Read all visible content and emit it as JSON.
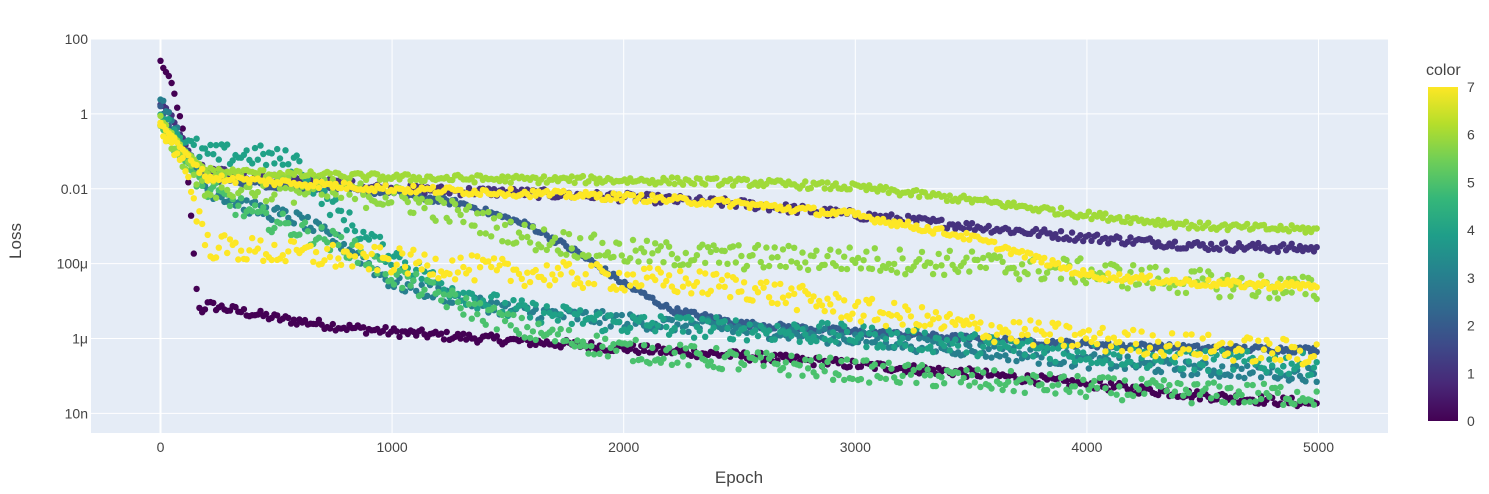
{
  "chart_data": {
    "type": "scatter",
    "xlabel": "Epoch",
    "ylabel": "Loss",
    "y_scale": "log",
    "xlim": [
      -300,
      5300
    ],
    "ylim": [
      3e-09,
      100
    ],
    "x_ticks": [
      {
        "value": 0,
        "label": "0"
      },
      {
        "value": 1000,
        "label": "1000"
      },
      {
        "value": 2000,
        "label": "2000"
      },
      {
        "value": 3000,
        "label": "3000"
      },
      {
        "value": 4000,
        "label": "4000"
      },
      {
        "value": 5000,
        "label": "5000"
      }
    ],
    "y_ticks": [
      {
        "value": 100,
        "label": "100"
      },
      {
        "value": 1,
        "label": "1"
      },
      {
        "value": 0.01,
        "label": "0.01"
      },
      {
        "value": 0.0001,
        "label": "100μ"
      },
      {
        "value": 1e-06,
        "label": "1μ"
      },
      {
        "value": 1e-08,
        "label": "10n"
      }
    ],
    "grid": true,
    "plot_background": "#e5ecf6",
    "colorbar": {
      "title": "color",
      "range": [
        0,
        7
      ],
      "ticks": [
        "0",
        "1",
        "2",
        "3",
        "4",
        "5",
        "6",
        "7"
      ],
      "colorscale": [
        "#440154",
        "#482878",
        "#3e4989",
        "#31688e",
        "#26828e",
        "#1f9e89",
        "#35b779",
        "#6ece58",
        "#b5de2b",
        "#fde725"
      ]
    },
    "series": [
      {
        "color_value": 0,
        "color": "#440154",
        "x": [
          0,
          50,
          100,
          130,
          150,
          170,
          200,
          300,
          500,
          800,
          1000,
          1500,
          2000,
          2500,
          3000,
          3500,
          4000,
          4500,
          5000
        ],
        "y": [
          25,
          6,
          0.3,
          0.003,
          5e-05,
          5e-06,
          8e-06,
          6e-06,
          3.5e-06,
          2e-06,
          1.5e-06,
          9e-07,
          5.5e-07,
          3.5e-07,
          2e-07,
          1.2e-07,
          6e-08,
          3e-08,
          1.8e-08
        ],
        "noise": 0.12
      },
      {
        "color_value": 1,
        "color": "#46327e",
        "x": [
          0,
          50,
          100,
          150,
          200,
          400,
          700,
          1000,
          1500,
          2000,
          2500,
          3000,
          3500,
          4000,
          4500,
          5000
        ],
        "y": [
          2,
          0.8,
          0.2,
          0.04,
          0.03,
          0.02,
          0.015,
          0.01,
          0.008,
          0.006,
          0.004,
          0.002,
          0.001,
          0.0005,
          0.0003,
          0.00025
        ],
        "noise": 0.12
      },
      {
        "color_value": 2,
        "color": "#365c8d",
        "x": [
          0,
          100,
          200,
          500,
          1000,
          1300,
          1600,
          1800,
          2000,
          2200,
          2500,
          3000,
          3500,
          4000,
          4500,
          5000
        ],
        "y": [
          1.5,
          0.08,
          0.02,
          0.012,
          0.008,
          0.004,
          0.001,
          0.0002,
          3e-05,
          6e-06,
          2.5e-06,
          1.5e-06,
          1e-06,
          7e-07,
          5.5e-07,
          5e-07
        ],
        "noise": 0.08
      },
      {
        "color_value": 3,
        "color": "#277f8e",
        "x": [
          0,
          100,
          200,
          400,
          600,
          800,
          1000,
          1500,
          2000,
          2500,
          3000,
          3500,
          4000,
          4500,
          5000
        ],
        "y": [
          3,
          0.15,
          0.01,
          0.003,
          0.0015,
          0.0003,
          3e-05,
          6e-06,
          3e-06,
          1.8e-06,
          1e-06,
          5e-07,
          2.5e-07,
          1.5e-07,
          1.1e-07
        ],
        "noise": 0.2
      },
      {
        "color_value": 4,
        "color": "#1fa187",
        "x": [
          0,
          100,
          200,
          400,
          600,
          700,
          900,
          1200,
          1500,
          2000,
          2500,
          3000,
          3500,
          4000,
          4500,
          5000
        ],
        "y": [
          1,
          0.2,
          0.08,
          0.08,
          0.05,
          0.006,
          0.0004,
          3e-05,
          6e-06,
          2.5e-06,
          1.8e-06,
          1.2e-06,
          7e-07,
          4e-07,
          2.5e-07,
          2e-07
        ],
        "noise": 0.3
      },
      {
        "color_value": 5,
        "color": "#4ac16d",
        "x": [
          0,
          100,
          200,
          400,
          600,
          800,
          1000,
          1300,
          1600,
          2000,
          2500,
          3000,
          3500,
          4000,
          4500,
          5000
        ],
        "y": [
          0.6,
          0.05,
          0.01,
          0.002,
          0.0008,
          0.0003,
          5e-05,
          8e-06,
          1.5e-06,
          5e-07,
          2.5e-07,
          1.4e-07,
          8e-08,
          5e-08,
          3.5e-08,
          3e-08
        ],
        "noise": 0.3
      },
      {
        "color_value": 6,
        "color": "#a0da39",
        "x": [
          0,
          100,
          200,
          500,
          1000,
          1500,
          2000,
          2500,
          3000,
          3500,
          4000,
          4500,
          5000
        ],
        "y": [
          0.8,
          0.1,
          0.03,
          0.025,
          0.02,
          0.018,
          0.017,
          0.015,
          0.011,
          0.005,
          0.002,
          0.001,
          0.0008
        ],
        "noise": 0.1
      },
      {
        "color_value": 6,
        "color": "#8fd744",
        "x": [
          0,
          100,
          200,
          500,
          1000,
          1300,
          1600,
          2000,
          2500,
          3000,
          3500,
          4000,
          4500,
          5000
        ],
        "y": [
          0.5,
          0.05,
          0.012,
          0.01,
          0.006,
          0.002,
          0.0005,
          0.0002,
          0.00015,
          0.00013,
          0.0001,
          6e-05,
          3e-05,
          2e-05
        ],
        "noise": 0.35
      },
      {
        "color_value": 7,
        "color": "#fde725",
        "x": [
          0,
          100,
          200,
          500,
          1000,
          1500,
          2000,
          2500,
          3000,
          3500,
          4000,
          4500,
          5000
        ],
        "y": [
          0.4,
          0.05,
          0.0003,
          0.0002,
          0.00012,
          6e-05,
          4e-05,
          2.5e-05,
          6e-06,
          2e-06,
          1e-06,
          6e-07,
          4e-07
        ],
        "noise": 0.35
      },
      {
        "color_value": 7,
        "color": "#fde725",
        "x": [
          0,
          100,
          200,
          500,
          1000,
          1500,
          2000,
          2500,
          3000,
          3500,
          4000,
          4500,
          5000
        ],
        "y": [
          0.6,
          0.1,
          0.02,
          0.015,
          0.01,
          0.008,
          0.006,
          0.004,
          0.002,
          0.0005,
          5e-05,
          3e-05,
          2.5e-05
        ],
        "noise": 0.1
      }
    ]
  }
}
